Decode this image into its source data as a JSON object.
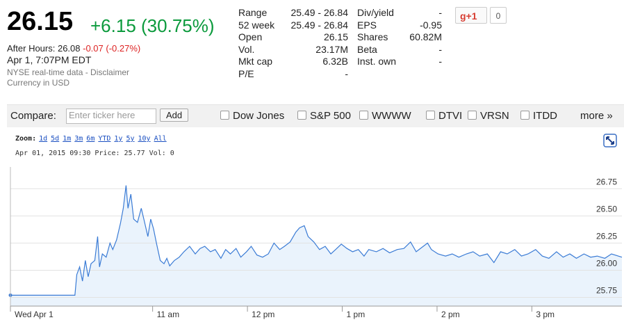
{
  "quote": {
    "price": "26.15",
    "change": "+6.15 (30.75%)",
    "after_hours": "After Hours: 26.08",
    "after_hours_change": "-0.07 (-0.27%)",
    "time": "Apr 1, 7:07PM EDT",
    "source": "NYSE real-time data - Disclaimer",
    "currency": "Currency in USD"
  },
  "stats": [
    [
      "Range",
      "25.49 - 26.84"
    ],
    [
      "52 week",
      "25.49 - 26.84"
    ],
    [
      "Open",
      "26.15"
    ],
    [
      "Vol.",
      "23.17M"
    ],
    [
      "Mkt cap",
      "6.32B"
    ],
    [
      "P/E",
      "-"
    ]
  ],
  "stats2": [
    [
      "Div/yield",
      "-"
    ],
    [
      "EPS",
      "-0.95"
    ],
    [
      "Shares",
      "60.82M"
    ],
    [
      "Beta",
      "-"
    ],
    [
      "Inst. own",
      "-"
    ]
  ],
  "gplus": {
    "label": "g+1",
    "count": "0"
  },
  "compare": {
    "label": "Compare:",
    "placeholder": "Enter ticker here",
    "button": "Add",
    "options": [
      "Dow Jones",
      "S&P 500",
      "WWWW",
      "DTVI",
      "VRSN",
      "ITDD"
    ],
    "more": "more »"
  },
  "zoom": {
    "label": "Zoom:",
    "options": [
      "1d",
      "5d",
      "1m",
      "3m",
      "6m",
      "YTD",
      "1y",
      "5y",
      "10y",
      "All"
    ]
  },
  "hover_info": "Apr 01, 2015 09:30 Price: 25.77 Vol: 0",
  "chart_data": {
    "type": "area",
    "x": [
      9.5,
      10.18,
      10.2,
      10.23,
      10.26,
      10.29,
      10.32,
      10.35,
      10.39,
      10.42,
      10.44,
      10.47,
      10.51,
      10.55,
      10.58,
      10.62,
      10.66,
      10.69,
      10.72,
      10.74,
      10.77,
      10.8,
      10.84,
      10.88,
      10.91,
      10.95,
      10.98,
      11.01,
      11.04,
      11.08,
      11.12,
      11.15,
      11.18,
      11.23,
      11.28,
      11.33,
      11.39,
      11.45,
      11.5,
      11.55,
      11.61,
      11.66,
      11.72,
      11.77,
      11.82,
      11.88,
      11.93,
      11.99,
      12.04,
      12.1,
      12.16,
      12.22,
      12.28,
      12.34,
      12.39,
      12.45,
      12.51,
      12.55,
      12.6,
      12.64,
      12.7,
      12.76,
      12.82,
      12.88,
      12.93,
      12.99,
      13.05,
      13.11,
      13.17,
      13.23,
      13.28,
      13.36,
      13.43,
      13.5,
      13.58,
      13.65,
      13.72,
      13.78,
      13.84,
      13.9,
      13.94,
      14.01,
      14.09,
      14.16,
      14.23,
      14.31,
      14.38,
      14.45,
      14.53,
      14.6,
      14.67,
      14.74,
      14.82,
      14.89,
      14.96,
      15.04,
      15.11,
      15.18,
      15.26,
      15.33,
      15.4,
      15.47,
      15.55,
      15.62,
      15.69,
      15.77,
      15.84,
      15.95
    ],
    "series": [
      {
        "color": "#3a7bd5",
        "fill": "#eaf3fc",
        "values": [
          25.77,
          25.77,
          25.96,
          26.03,
          25.9,
          26.09,
          25.94,
          26.06,
          26.09,
          26.31,
          26.03,
          26.15,
          26.12,
          26.25,
          26.19,
          26.28,
          26.43,
          26.57,
          26.78,
          26.57,
          26.7,
          26.47,
          26.44,
          26.57,
          26.46,
          26.31,
          26.47,
          26.38,
          26.25,
          26.09,
          26.06,
          26.11,
          26.04,
          26.09,
          26.12,
          26.17,
          26.22,
          26.15,
          26.2,
          26.22,
          26.17,
          26.19,
          26.11,
          26.19,
          26.15,
          26.2,
          26.12,
          26.17,
          26.22,
          26.14,
          26.12,
          26.15,
          26.25,
          26.19,
          26.22,
          26.26,
          26.35,
          26.39,
          26.41,
          26.31,
          26.26,
          26.19,
          26.22,
          26.15,
          26.19,
          26.24,
          26.2,
          26.17,
          26.19,
          26.13,
          26.19,
          26.17,
          26.2,
          26.16,
          26.19,
          26.2,
          26.26,
          26.17,
          26.21,
          26.25,
          26.19,
          26.15,
          26.13,
          26.15,
          26.12,
          26.15,
          26.17,
          26.13,
          26.15,
          26.07,
          26.17,
          26.15,
          26.19,
          26.13,
          26.15,
          26.19,
          26.13,
          26.11,
          26.17,
          26.12,
          26.15,
          26.11,
          26.15,
          26.12,
          26.13,
          26.11,
          26.15,
          26.12
        ]
      }
    ],
    "xlim": [
      9.5,
      15.95
    ],
    "xticks": [
      {
        "value": 9.5,
        "label": "Wed Apr 1"
      },
      {
        "value": 11,
        "label": "11 am"
      },
      {
        "value": 12,
        "label": "12 pm"
      },
      {
        "value": 13,
        "label": "1 pm"
      },
      {
        "value": 14,
        "label": "2 pm"
      },
      {
        "value": 15,
        "label": "3 pm"
      }
    ],
    "ylim": [
      25.67,
      26.95
    ],
    "yticks": [
      25.75,
      {
        "value": 26,
        "label": "26.00"
      },
      26.25,
      {
        "value": 26.5,
        "label": "26.50"
      },
      26.75
    ],
    "grid": true
  }
}
